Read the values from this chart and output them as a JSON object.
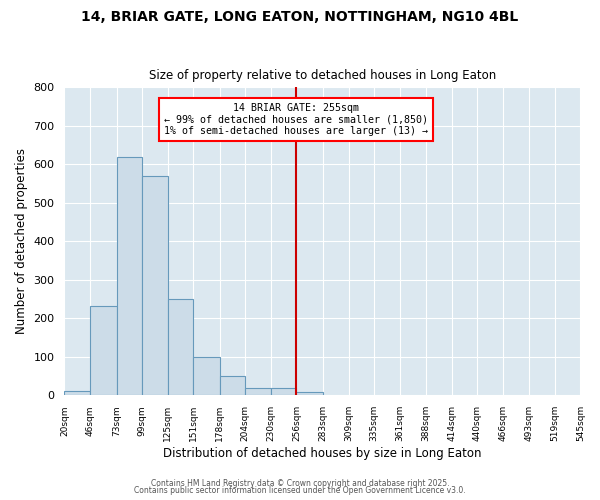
{
  "title1": "14, BRIAR GATE, LONG EATON, NOTTINGHAM, NG10 4BL",
  "title2": "Size of property relative to detached houses in Long Eaton",
  "xlabel": "Distribution of detached houses by size in Long Eaton",
  "ylabel": "Number of detached properties",
  "bin_edges": [
    20,
    46,
    73,
    99,
    125,
    151,
    178,
    204,
    230,
    256,
    283,
    309,
    335,
    361,
    388,
    414,
    440,
    466,
    493,
    519,
    545
  ],
  "bar_heights": [
    10,
    233,
    620,
    570,
    250,
    100,
    50,
    20,
    20,
    8,
    0,
    0,
    0,
    0,
    0,
    0,
    0,
    0,
    0,
    0
  ],
  "bar_color": "#ccdce8",
  "bar_edge_color": "#6699bb",
  "red_line_x": 256,
  "annotation_title": "14 BRIAR GATE: 255sqm",
  "annotation_line1": "← 99% of detached houses are smaller (1,850)",
  "annotation_line2": "1% of semi-detached houses are larger (13) →",
  "annotation_box_color": "white",
  "annotation_border_color": "red",
  "red_line_color": "#cc0000",
  "fig_background_color": "#ffffff",
  "plot_background_color": "#dce8f0",
  "grid_color": "#ffffff",
  "ylim": [
    0,
    800
  ],
  "yticks": [
    0,
    100,
    200,
    300,
    400,
    500,
    600,
    700,
    800
  ],
  "footer1": "Contains HM Land Registry data © Crown copyright and database right 2025.",
  "footer2": "Contains public sector information licensed under the Open Government Licence v3.0."
}
